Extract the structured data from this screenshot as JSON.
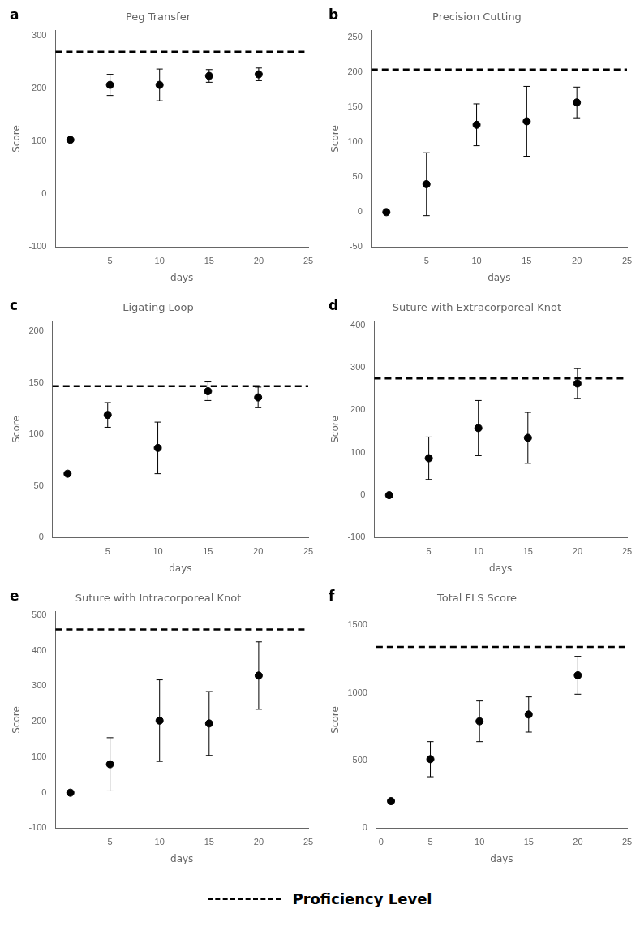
{
  "chart_data": [
    {
      "type": "scatter",
      "title": "Peg Transfer",
      "annotations": [
        "a"
      ],
      "xlabel": "days",
      "ylabel": "Score",
      "x": [
        1,
        5,
        10,
        15,
        20
      ],
      "series": [
        {
          "values": [
            103,
            207,
            207,
            224,
            227
          ],
          "yerr": [
            0,
            20,
            30,
            12,
            12
          ],
          "color": "#000000",
          "marker": "circle",
          "line_style": "none"
        }
      ],
      "proficiency": 270,
      "xlim": [
        -0.5,
        25
      ],
      "xticks": [
        5,
        10,
        15,
        20,
        25
      ],
      "ylim": [
        -100,
        310
      ],
      "yticks": [
        -100,
        0,
        100,
        200,
        300
      ],
      "grid": false
    },
    {
      "type": "scatter",
      "title": "Precision Cutting",
      "annotations": [
        "b"
      ],
      "xlabel": "days",
      "ylabel": "Score",
      "x": [
        1,
        5,
        10,
        15,
        20
      ],
      "series": [
        {
          "values": [
            0,
            40,
            125,
            130,
            157
          ],
          "yerr": [
            0,
            45,
            30,
            50,
            22
          ],
          "color": "#000000",
          "marker": "circle",
          "line_style": "none"
        }
      ],
      "proficiency": 204,
      "xlim": [
        -0.5,
        25
      ],
      "xticks": [
        5,
        10,
        15,
        20,
        25
      ],
      "ylim": [
        -50,
        260
      ],
      "yticks": [
        -50,
        0,
        50,
        100,
        150,
        200,
        250
      ],
      "grid": false
    },
    {
      "type": "scatter",
      "title": "Ligating Loop",
      "annotations": [
        "c"
      ],
      "xlabel": "days",
      "ylabel": "Score",
      "x": [
        1,
        5,
        10,
        15,
        20
      ],
      "series": [
        {
          "values": [
            62,
            119,
            87,
            142,
            136
          ],
          "yerr": [
            0,
            12,
            25,
            9,
            10
          ],
          "color": "#000000",
          "marker": "circle",
          "line_style": "none"
        }
      ],
      "proficiency": 147,
      "xlim": [
        -0.5,
        25
      ],
      "xticks": [
        5,
        10,
        15,
        20,
        25
      ],
      "ylim": [
        0,
        210
      ],
      "yticks": [
        0,
        50,
        100,
        150,
        200
      ],
      "grid": false
    },
    {
      "type": "scatter",
      "title": "Suture with Extracorporeal Knot",
      "annotations": [
        "d"
      ],
      "xlabel": "days",
      "ylabel": "Score",
      "x": [
        1,
        5,
        10,
        15,
        20
      ],
      "series": [
        {
          "values": [
            0,
            87,
            158,
            135,
            263
          ],
          "yerr": [
            0,
            50,
            65,
            60,
            35
          ],
          "color": "#000000",
          "marker": "circle",
          "line_style": "none"
        }
      ],
      "proficiency": 275,
      "xlim": [
        -0.5,
        25
      ],
      "xticks": [
        5,
        10,
        15,
        20,
        25
      ],
      "ylim": [
        -100,
        410
      ],
      "yticks": [
        -100,
        0,
        100,
        200,
        300,
        400
      ],
      "grid": false
    },
    {
      "type": "scatter",
      "title": "Suture with Intracorporeal Knot",
      "annotations": [
        "e"
      ],
      "xlabel": "days",
      "ylabel": "Score",
      "x": [
        1,
        5,
        10,
        15,
        20
      ],
      "series": [
        {
          "values": [
            0,
            80,
            203,
            195,
            330
          ],
          "yerr": [
            0,
            75,
            115,
            90,
            95
          ],
          "color": "#000000",
          "marker": "circle",
          "line_style": "none"
        }
      ],
      "proficiency": 460,
      "xlim": [
        -0.5,
        25
      ],
      "xticks": [
        5,
        10,
        15,
        20,
        25
      ],
      "ylim": [
        -100,
        510
      ],
      "yticks": [
        -100,
        0,
        100,
        200,
        300,
        400,
        500
      ],
      "grid": false
    },
    {
      "type": "scatter",
      "title": "Total FLS Score",
      "annotations": [
        "f"
      ],
      "xlabel": "days",
      "ylabel": "Score",
      "x": [
        1,
        5,
        10,
        15,
        20
      ],
      "series": [
        {
          "values": [
            200,
            510,
            790,
            840,
            1130
          ],
          "yerr": [
            0,
            130,
            150,
            130,
            140
          ],
          "color": "#000000",
          "marker": "circle",
          "line_style": "none"
        }
      ],
      "proficiency": 1340,
      "xlim": [
        -0.5,
        25
      ],
      "xticks": [
        0,
        5,
        10,
        15,
        20,
        25
      ],
      "ylim": [
        0,
        1600
      ],
      "yticks": [
        0,
        500,
        1000,
        1500
      ],
      "grid": false
    }
  ],
  "legend_label": "Proficiency Level"
}
